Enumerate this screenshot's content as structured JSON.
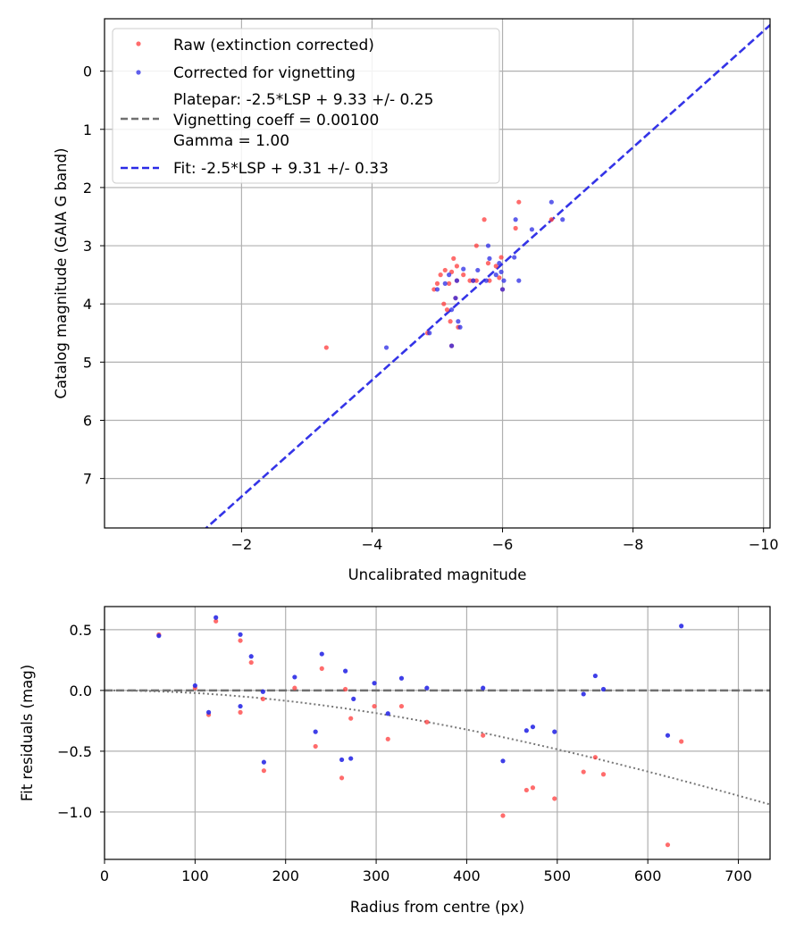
{
  "colors": {
    "raw": "#ff3b3b",
    "corrected": "#2a2ae6",
    "fit": "#2a2ae6",
    "dashed_gray": "#707070",
    "grid": "#b0b0b0"
  },
  "chart_data": [
    {
      "type": "scatter",
      "xlabel": "Uncalibrated magnitude",
      "ylabel": "Catalog magnitude (GAIA G band)",
      "xlim": [
        0.1,
        -10.1
      ],
      "ylim": [
        7.85,
        -0.9
      ],
      "xticks": [
        -2,
        -4,
        -6,
        -8,
        -10
      ],
      "xtick_labels": [
        "−2",
        "−4",
        "−6",
        "−8",
        "−10"
      ],
      "yticks": [
        0,
        1,
        2,
        3,
        4,
        5,
        6,
        7
      ],
      "ytick_labels": [
        "0",
        "1",
        "2",
        "3",
        "4",
        "5",
        "6",
        "7"
      ],
      "grid": true,
      "legend_position": "top-left",
      "legend": {
        "raw": "Raw (extinction corrected)",
        "corrected": "Corrected for vignetting",
        "platepar_line1": "Platepar: -2.5*LSP + 9.33 +/- 0.25",
        "platepar_line2": "Vignetting coeff = 0.00100",
        "platepar_line3": "Gamma = 1.00",
        "fit": "Fit: -2.5*LSP + 9.31 +/- 0.33"
      },
      "platepar_line": {
        "slope": 1.0,
        "intercept": 9.33
      },
      "fit_line": {
        "slope": 1.0,
        "intercept": 9.31
      },
      "series": [
        {
          "name": "Raw (extinction corrected)",
          "x": [
            -3.3,
            -4.85,
            -4.95,
            -5.0,
            -5.05,
            -5.1,
            -5.12,
            -5.15,
            -5.18,
            -5.2,
            -5.22,
            -5.22,
            -5.25,
            -5.28,
            -5.3,
            -5.3,
            -5.32,
            -5.4,
            -5.5,
            -5.55,
            -5.6,
            -5.6,
            -5.72,
            -5.78,
            -5.8,
            -5.9,
            -5.95,
            -5.98,
            -6.0,
            -6.2,
            -6.25,
            -6.75
          ],
          "y": [
            4.75,
            4.5,
            3.75,
            3.65,
            3.5,
            4.0,
            3.42,
            4.1,
            3.65,
            4.3,
            3.45,
            4.72,
            3.22,
            3.9,
            3.35,
            3.6,
            4.4,
            3.5,
            3.6,
            3.6,
            3.0,
            3.6,
            2.55,
            3.3,
            3.6,
            3.35,
            3.55,
            3.2,
            3.75,
            2.7,
            2.25,
            2.55
          ]
        },
        {
          "name": "Corrected for vignetting",
          "x": [
            -4.22,
            -4.88,
            -5.0,
            -5.12,
            -5.18,
            -5.22,
            -5.22,
            -5.28,
            -5.3,
            -5.32,
            -5.35,
            -5.4,
            -5.55,
            -5.62,
            -5.75,
            -5.78,
            -5.8,
            -5.9,
            -5.95,
            -5.98,
            -6.0,
            -6.02,
            -6.18,
            -6.2,
            -6.25,
            -6.45,
            -6.75,
            -6.92
          ],
          "y": [
            4.75,
            4.5,
            3.75,
            3.65,
            3.5,
            4.1,
            4.72,
            3.9,
            3.6,
            4.3,
            4.4,
            3.4,
            3.6,
            3.42,
            3.6,
            3.0,
            3.22,
            3.5,
            3.3,
            3.45,
            3.75,
            3.6,
            3.2,
            2.55,
            3.6,
            2.72,
            2.25,
            2.55
          ]
        }
      ]
    },
    {
      "type": "scatter",
      "xlabel": "Radius from centre (px)",
      "ylabel": "Fit residuals (mag)",
      "xlim": [
        0,
        735
      ],
      "ylim": [
        -1.39,
        0.69
      ],
      "xticks": [
        0,
        100,
        200,
        300,
        400,
        500,
        600,
        700
      ],
      "xtick_labels": [
        "0",
        "100",
        "200",
        "300",
        "400",
        "500",
        "600",
        "700"
      ],
      "yticks": [
        0.5,
        0.0,
        -0.5,
        -1.0
      ],
      "ytick_labels": [
        "0.5",
        "0.0",
        "−0.5",
        "−1.0"
      ],
      "grid": true,
      "reference_line": {
        "type": "dashed",
        "y": 0
      },
      "vignetting_curve": {
        "type": "dotted",
        "coeff": 0.001,
        "gamma": 1.0
      },
      "series": [
        {
          "name": "Raw",
          "x": [
            60,
            100,
            115,
            123,
            150,
            150,
            162,
            175,
            176,
            210,
            233,
            240,
            262,
            266,
            272,
            298,
            313,
            328,
            356,
            418,
            440,
            466,
            473,
            497,
            529,
            542,
            551,
            622,
            637
          ],
          "y": [
            0.46,
            0.02,
            -0.2,
            0.57,
            -0.18,
            0.41,
            0.23,
            -0.07,
            -0.66,
            0.02,
            -0.46,
            0.18,
            -0.72,
            0.01,
            -0.23,
            -0.13,
            -0.4,
            -0.13,
            -0.26,
            -0.37,
            -1.03,
            -0.82,
            -0.8,
            -0.89,
            -0.67,
            -0.55,
            -0.69,
            -1.27,
            -0.42
          ]
        },
        {
          "name": "Corrected",
          "x": [
            60,
            100,
            115,
            123,
            150,
            150,
            162,
            175,
            176,
            210,
            233,
            240,
            262,
            266,
            272,
            275,
            298,
            313,
            328,
            356,
            418,
            440,
            466,
            473,
            497,
            529,
            542,
            551,
            622,
            637
          ],
          "y": [
            0.45,
            0.04,
            -0.18,
            0.6,
            -0.13,
            0.46,
            0.28,
            -0.01,
            -0.59,
            0.11,
            -0.34,
            0.3,
            -0.57,
            0.16,
            -0.56,
            -0.07,
            0.06,
            -0.19,
            0.1,
            0.02,
            0.02,
            -0.58,
            -0.33,
            -0.3,
            -0.34,
            -0.03,
            0.12,
            0.01,
            -0.37,
            0.53
          ]
        }
      ]
    }
  ]
}
